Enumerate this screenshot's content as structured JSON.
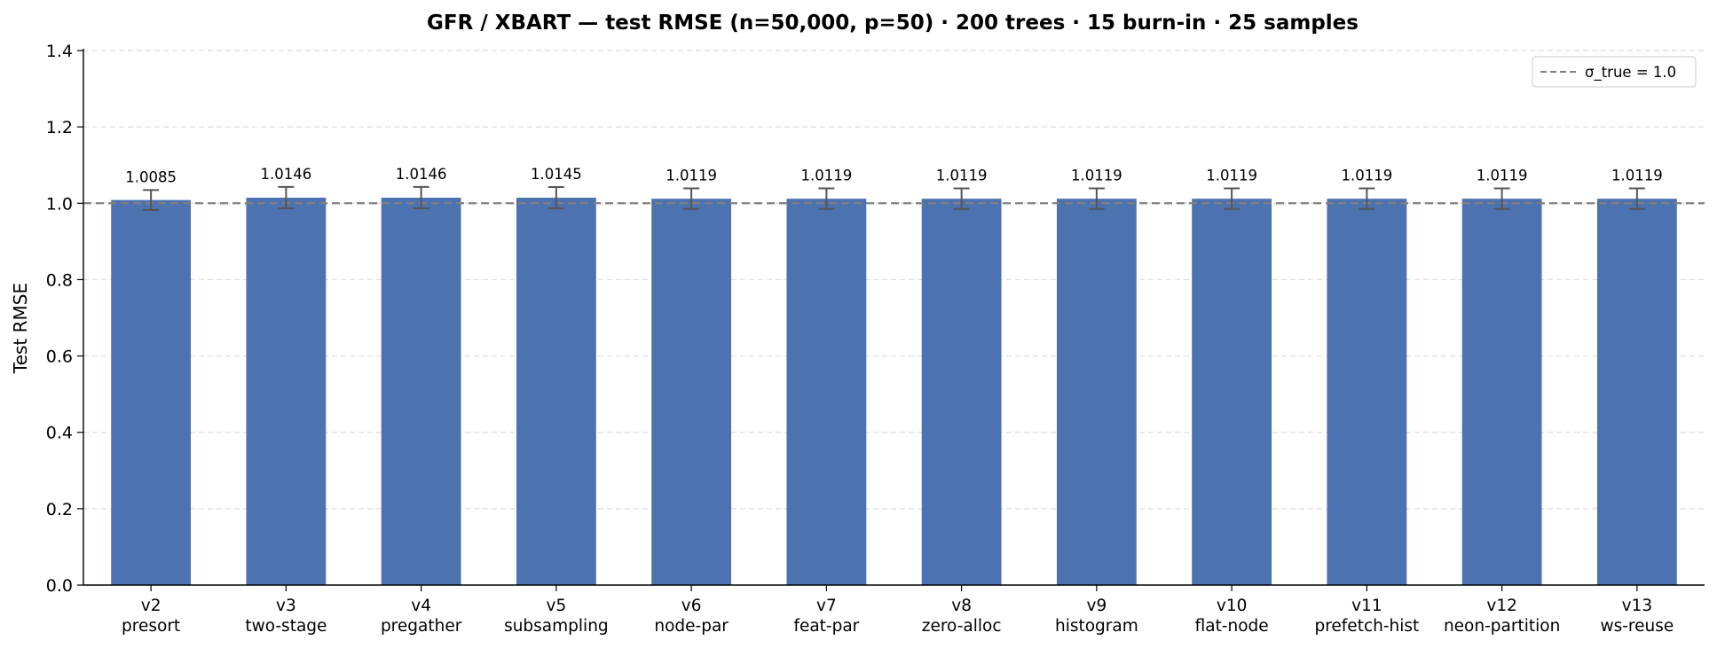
{
  "chart_data": {
    "type": "bar",
    "title": "GFR / XBART — test RMSE  (n=50,000, p=50)  ·  200 trees · 15 burn-in · 25 samples",
    "xlabel": "",
    "ylabel": "Test RMSE",
    "ylim": [
      0,
      1.4
    ],
    "yticks": [
      "0.0",
      "0.2",
      "0.4",
      "0.6",
      "0.8",
      "1.0",
      "1.2",
      "1.4"
    ],
    "grid": "horizontal dashed",
    "legend_position": "top-right",
    "bar_color": "#4c72b0",
    "categories": [
      {
        "version": "v2",
        "name": "presort"
      },
      {
        "version": "v3",
        "name": "two-stage"
      },
      {
        "version": "v4",
        "name": "pregather"
      },
      {
        "version": "v5",
        "name": "subsampling"
      },
      {
        "version": "v6",
        "name": "node-par"
      },
      {
        "version": "v7",
        "name": "feat-par"
      },
      {
        "version": "v8",
        "name": "zero-alloc"
      },
      {
        "version": "v9",
        "name": "histogram"
      },
      {
        "version": "v10",
        "name": "flat-node"
      },
      {
        "version": "v11",
        "name": "prefetch-hist"
      },
      {
        "version": "v12",
        "name": "neon-partition"
      },
      {
        "version": "v13",
        "name": "ws-reuse"
      }
    ],
    "values": [
      1.0085,
      1.0146,
      1.0146,
      1.0145,
      1.0119,
      1.0119,
      1.0119,
      1.0119,
      1.0119,
      1.0119,
      1.0119,
      1.0119
    ],
    "value_labels": [
      "1.0085",
      "1.0146",
      "1.0146",
      "1.0145",
      "1.0119",
      "1.0119",
      "1.0119",
      "1.0119",
      "1.0119",
      "1.0119",
      "1.0119",
      "1.0119"
    ],
    "error_bars": [
      0.026,
      0.028,
      0.028,
      0.028,
      0.027,
      0.027,
      0.027,
      0.027,
      0.027,
      0.027,
      0.027,
      0.027
    ],
    "reference_line": {
      "value": 1.0,
      "label": "σ_true = 1.0",
      "color": "#808080",
      "style": "dashed"
    }
  }
}
